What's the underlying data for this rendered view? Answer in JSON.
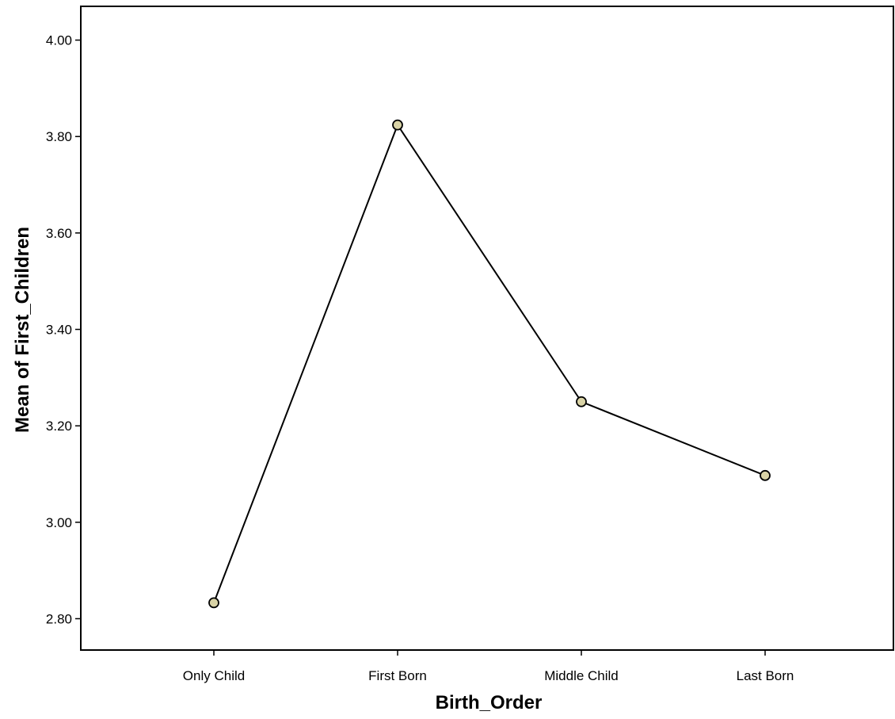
{
  "chart_data": {
    "type": "line",
    "title": "",
    "xlabel": "Birth_Order",
    "ylabel": "Mean of First_Children",
    "categories": [
      "Only Child",
      "First Born",
      "Middle Child",
      "Last Born"
    ],
    "series": [
      {
        "values": [
          2.833,
          3.824,
          3.25,
          3.097
        ]
      }
    ],
    "ylim": [
      2.735,
      4.07
    ],
    "yticks": [
      2.8,
      3.0,
      3.2,
      3.4,
      3.6,
      3.8,
      4.0
    ],
    "ytick_labels": [
      "2.80",
      "3.00",
      "3.20",
      "3.40",
      "3.60",
      "3.80",
      "4.00"
    ],
    "grid": false,
    "legend": "none",
    "colors": {
      "line": "#000000",
      "marker_fill": "#d9d3a6",
      "marker_stroke": "#000000",
      "axis": "#000000"
    }
  }
}
